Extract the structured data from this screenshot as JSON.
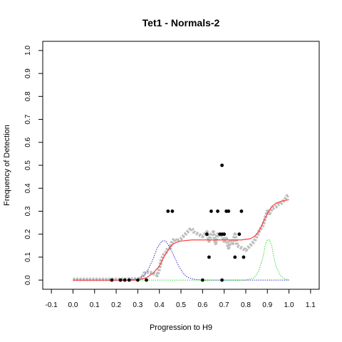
{
  "chart_data": {
    "type": "scatter",
    "title": "Tet1 - Normals-2",
    "xlabel": "Progression to H9",
    "ylabel": "Frequency of Detection",
    "xlim": [
      -0.14,
      1.14
    ],
    "ylim": [
      -0.04,
      1.04
    ],
    "x_ticks": [
      -0.1,
      0,
      0.1,
      0.2,
      0.3,
      0.4,
      0.5,
      0.6,
      0.7,
      0.8,
      0.9,
      1,
      1.1
    ],
    "x_tick_labels": [
      "-0.1",
      "0.0",
      "0.1",
      "0.2",
      "0.3",
      "0.4",
      "0.5",
      "0.6",
      "0.7",
      "0.8",
      "0.9",
      "1.0",
      "1.1"
    ],
    "y_ticks": [
      0,
      0.1,
      0.2,
      0.3,
      0.4,
      0.5,
      0.6,
      0.7,
      0.8,
      0.9,
      1
    ],
    "y_tick_labels": [
      "0.0",
      "0.1",
      "0.2",
      "0.3",
      "0.4",
      "0.5",
      "0.6",
      "0.7",
      "0.8",
      "0.9",
      "1.0"
    ],
    "grid": false,
    "legend": "none",
    "colors": {
      "points": "#000000",
      "running_mean": "#bebebe",
      "fit": "#ff3b3b",
      "density_1": "#3333cc",
      "density_2": "#33dd33"
    },
    "series": [
      {
        "type": "scatter",
        "points": [
          [
            0.18,
            0
          ],
          [
            0.22,
            0
          ],
          [
            0.24,
            0
          ],
          [
            0.26,
            0
          ],
          [
            0.3,
            0
          ],
          [
            0.34,
            0
          ],
          [
            0.44,
            0.3
          ],
          [
            0.46,
            0.3
          ],
          [
            0.6,
            0
          ],
          [
            0.62,
            0.2
          ],
          [
            0.63,
            0.1
          ],
          [
            0.64,
            0.3
          ],
          [
            0.67,
            0.3
          ],
          [
            0.68,
            0.2
          ],
          [
            0.69,
            0.5
          ],
          [
            0.69,
            0.2
          ],
          [
            0.7,
            0.2
          ],
          [
            0.71,
            0.3
          ],
          [
            0.72,
            0.3
          ],
          [
            0.69,
            0
          ],
          [
            0.75,
            0.1
          ],
          [
            0.77,
            0.2
          ],
          [
            0.78,
            0.3
          ],
          [
            0.79,
            0.1
          ]
        ]
      },
      {
        "type": "line",
        "role": "running-mean",
        "points": [
          [
            0.0,
            0.003
          ],
          [
            0.1,
            0.003
          ],
          [
            0.2,
            0.003
          ],
          [
            0.3,
            0.005
          ],
          [
            0.32,
            0.01
          ],
          [
            0.33,
            0.03
          ],
          [
            0.35,
            0.035
          ],
          [
            0.37,
            0.03
          ],
          [
            0.39,
            0.02
          ],
          [
            0.4,
            0.05
          ],
          [
            0.41,
            0.09
          ],
          [
            0.42,
            0.11
          ],
          [
            0.43,
            0.12
          ],
          [
            0.44,
            0.14
          ],
          [
            0.45,
            0.14
          ],
          [
            0.46,
            0.17
          ],
          [
            0.47,
            0.18
          ],
          [
            0.48,
            0.17
          ],
          [
            0.5,
            0.18
          ],
          [
            0.52,
            0.2
          ],
          [
            0.54,
            0.22
          ],
          [
            0.55,
            0.225
          ],
          [
            0.56,
            0.21
          ],
          [
            0.58,
            0.2
          ],
          [
            0.6,
            0.19
          ],
          [
            0.61,
            0.2
          ],
          [
            0.62,
            0.21
          ],
          [
            0.63,
            0.17
          ],
          [
            0.64,
            0.2
          ],
          [
            0.65,
            0.21
          ],
          [
            0.66,
            0.16
          ],
          [
            0.67,
            0.2
          ],
          [
            0.68,
            0.19
          ],
          [
            0.69,
            0.2
          ],
          [
            0.7,
            0.17
          ],
          [
            0.71,
            0.18
          ],
          [
            0.72,
            0.14
          ],
          [
            0.73,
            0.17
          ],
          [
            0.74,
            0.16
          ],
          [
            0.75,
            0.2
          ],
          [
            0.76,
            0.15
          ],
          [
            0.78,
            0.14
          ],
          [
            0.8,
            0.13
          ],
          [
            0.82,
            0.15
          ],
          [
            0.84,
            0.17
          ],
          [
            0.86,
            0.21
          ],
          [
            0.88,
            0.24
          ],
          [
            0.89,
            0.27
          ],
          [
            0.9,
            0.3
          ],
          [
            0.91,
            0.29
          ],
          [
            0.92,
            0.31
          ],
          [
            0.94,
            0.32
          ],
          [
            0.95,
            0.33
          ],
          [
            0.96,
            0.33
          ],
          [
            0.97,
            0.34
          ],
          [
            0.98,
            0.35
          ],
          [
            0.99,
            0.365
          ],
          [
            1.0,
            0.37
          ]
        ]
      },
      {
        "type": "line",
        "role": "fit",
        "points": [
          [
            0.0,
            0.0
          ],
          [
            0.25,
            0.0
          ],
          [
            0.3,
            0.0
          ],
          [
            0.34,
            0.01
          ],
          [
            0.37,
            0.03
          ],
          [
            0.4,
            0.06
          ],
          [
            0.42,
            0.1
          ],
          [
            0.44,
            0.13
          ],
          [
            0.46,
            0.155
          ],
          [
            0.48,
            0.165
          ],
          [
            0.5,
            0.17
          ],
          [
            0.55,
            0.175
          ],
          [
            0.6,
            0.175
          ],
          [
            0.7,
            0.175
          ],
          [
            0.78,
            0.175
          ],
          [
            0.82,
            0.18
          ],
          [
            0.84,
            0.19
          ],
          [
            0.86,
            0.21
          ],
          [
            0.88,
            0.25
          ],
          [
            0.9,
            0.29
          ],
          [
            0.92,
            0.32
          ],
          [
            0.94,
            0.335
          ],
          [
            0.97,
            0.345
          ],
          [
            1.0,
            0.35
          ]
        ]
      },
      {
        "type": "line",
        "role": "density-1",
        "points": [
          [
            0.0,
            0
          ],
          [
            0.25,
            0
          ],
          [
            0.3,
            0.005
          ],
          [
            0.33,
            0.02
          ],
          [
            0.35,
            0.05
          ],
          [
            0.37,
            0.09
          ],
          [
            0.39,
            0.14
          ],
          [
            0.41,
            0.168
          ],
          [
            0.42,
            0.172
          ],
          [
            0.43,
            0.17
          ],
          [
            0.45,
            0.14
          ],
          [
            0.47,
            0.1
          ],
          [
            0.49,
            0.06
          ],
          [
            0.51,
            0.03
          ],
          [
            0.53,
            0.012
          ],
          [
            0.56,
            0.003
          ],
          [
            0.6,
            0
          ],
          [
            1.0,
            0
          ]
        ]
      },
      {
        "type": "line",
        "role": "density-2",
        "points": [
          [
            0.3,
            0
          ],
          [
            0.8,
            0
          ],
          [
            0.84,
            0.01
          ],
          [
            0.86,
            0.04
          ],
          [
            0.88,
            0.1
          ],
          [
            0.89,
            0.15
          ],
          [
            0.9,
            0.175
          ],
          [
            0.91,
            0.175
          ],
          [
            0.92,
            0.15
          ],
          [
            0.93,
            0.1
          ],
          [
            0.94,
            0.06
          ],
          [
            0.96,
            0.02
          ],
          [
            0.98,
            0.005
          ],
          [
            1.0,
            0
          ]
        ]
      }
    ]
  }
}
